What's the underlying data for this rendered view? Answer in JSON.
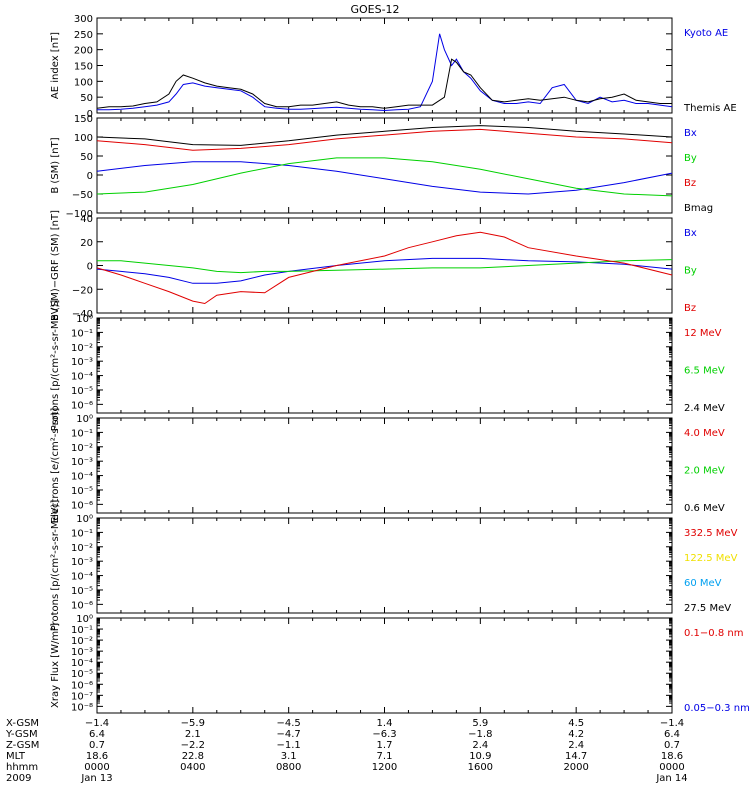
{
  "title": "GOES-12",
  "colors": {
    "black": "#000000",
    "blue": "#0000e6",
    "green": "#00d000",
    "red": "#e00000",
    "yellow": "#f0e000",
    "cyan": "#00a0f0"
  },
  "chart_data": [
    {
      "type": "line",
      "title": "GOES-12",
      "ylabel": "AE index [nT]",
      "ylim": [
        0,
        300
      ],
      "yticks": [
        "0",
        "50",
        "100",
        "150",
        "200",
        "250",
        "300"
      ],
      "legend_placement": "right",
      "series": [
        {
          "name": "Kyoto AE",
          "color": "#0000e6",
          "x": [
            0,
            0.5,
            1,
            1.5,
            2,
            2.5,
            3,
            3.3,
            3.6,
            4,
            4.5,
            5,
            5.5,
            6,
            6.5,
            7,
            7.5,
            8,
            8.5,
            9,
            9.5,
            10,
            10.5,
            11,
            11.5,
            12,
            12.5,
            13,
            13.5,
            14,
            14.3,
            14.5,
            14.8,
            15,
            15.3,
            15.6,
            16,
            16.5,
            17,
            17.5,
            18,
            18.5,
            19,
            19.5,
            20,
            20.5,
            21,
            21.5,
            22,
            22.5,
            23,
            23.5,
            24
          ],
          "y": [
            10,
            10,
            12,
            15,
            20,
            25,
            35,
            60,
            90,
            95,
            85,
            80,
            75,
            70,
            50,
            20,
            15,
            12,
            12,
            14,
            16,
            18,
            15,
            12,
            10,
            8,
            10,
            12,
            20,
            100,
            250,
            200,
            150,
            170,
            130,
            110,
            70,
            40,
            30,
            30,
            35,
            30,
            80,
            90,
            40,
            30,
            50,
            35,
            40,
            30,
            30,
            25,
            20
          ]
        },
        {
          "name": "Themis AE",
          "color": "#000000",
          "x": [
            0,
            0.5,
            1,
            1.5,
            2,
            2.5,
            3,
            3.3,
            3.6,
            4,
            4.5,
            5,
            5.5,
            6,
            6.5,
            7,
            7.5,
            8,
            8.5,
            9,
            9.5,
            10,
            10.5,
            11,
            11.5,
            12,
            12.5,
            13,
            13.5,
            14,
            14.5,
            14.8,
            15,
            15.3,
            15.6,
            16,
            16.5,
            17,
            17.5,
            18,
            18.5,
            19,
            19.5,
            20,
            20.5,
            21,
            21.5,
            22,
            22.5,
            23,
            23.5,
            24
          ],
          "y": [
            15,
            20,
            20,
            22,
            30,
            35,
            60,
            100,
            120,
            110,
            95,
            85,
            80,
            75,
            60,
            30,
            20,
            20,
            25,
            25,
            30,
            35,
            25,
            20,
            20,
            15,
            20,
            25,
            25,
            25,
            50,
            170,
            160,
            130,
            120,
            80,
            40,
            35,
            40,
            45,
            40,
            45,
            50,
            40,
            35,
            45,
            50,
            60,
            40,
            35,
            30,
            30
          ]
        }
      ]
    },
    {
      "type": "line",
      "ylabel": "B (SM) [nT]",
      "ylim": [
        -100,
        150
      ],
      "yticks": [
        "−100",
        "−50",
        "0",
        "50",
        "100",
        "150"
      ],
      "legend_placement": "right",
      "series": [
        {
          "name": "Bx",
          "color": "#0000e6",
          "x": [
            0,
            2,
            4,
            6,
            8,
            10,
            12,
            14,
            16,
            18,
            20,
            22,
            24
          ],
          "y": [
            10,
            25,
            35,
            35,
            25,
            10,
            -10,
            -30,
            -45,
            -50,
            -40,
            -20,
            5
          ]
        },
        {
          "name": "By",
          "color": "#00d000",
          "x": [
            0,
            2,
            4,
            6,
            8,
            10,
            12,
            14,
            16,
            18,
            20,
            22,
            24
          ],
          "y": [
            -50,
            -45,
            -25,
            5,
            30,
            45,
            45,
            35,
            15,
            -10,
            -35,
            -50,
            -55
          ]
        },
        {
          "name": "Bz",
          "color": "#e00000",
          "x": [
            0,
            2,
            4,
            6,
            8,
            10,
            12,
            14,
            16,
            18,
            20,
            22,
            24
          ],
          "y": [
            90,
            80,
            65,
            70,
            80,
            95,
            105,
            115,
            120,
            110,
            100,
            95,
            85
          ]
        },
        {
          "name": "Bmag",
          "color": "#000000",
          "x": [
            0,
            2,
            4,
            6,
            8,
            10,
            12,
            14,
            16,
            18,
            20,
            22,
            24
          ],
          "y": [
            100,
            95,
            80,
            78,
            90,
            105,
            115,
            125,
            130,
            125,
            115,
            108,
            100
          ]
        }
      ]
    },
    {
      "type": "line",
      "ylabel": "B (SM)−GRF (SM) [nT]",
      "ylim": [
        -40,
        40
      ],
      "yticks": [
        "−40",
        "−20",
        "0",
        "20",
        "40"
      ],
      "legend_placement": "right",
      "series": [
        {
          "name": "Bx",
          "color": "#0000e6",
          "x": [
            0,
            1,
            2,
            3,
            4,
            5,
            6,
            7,
            8,
            10,
            12,
            14,
            16,
            18,
            20,
            22,
            24
          ],
          "y": [
            -3,
            -5,
            -7,
            -10,
            -15,
            -15,
            -13,
            -8,
            -5,
            0,
            4,
            6,
            6,
            4,
            3,
            1,
            -3
          ]
        },
        {
          "name": "By",
          "color": "#00d000",
          "x": [
            0,
            1,
            2,
            3,
            4,
            5,
            6,
            7,
            8,
            10,
            12,
            14,
            16,
            18,
            20,
            22,
            24
          ],
          "y": [
            4,
            4,
            2,
            0,
            -2,
            -5,
            -6,
            -5,
            -5,
            -4,
            -3,
            -2,
            -2,
            0,
            2,
            4,
            5
          ]
        },
        {
          "name": "Bz",
          "color": "#e00000",
          "x": [
            0,
            1,
            2,
            3,
            4,
            4.5,
            5,
            6,
            7,
            8,
            10,
            12,
            13,
            14,
            15,
            16,
            17,
            18,
            20,
            22,
            24
          ],
          "y": [
            -2,
            -8,
            -15,
            -22,
            -30,
            -32,
            -25,
            -22,
            -23,
            -10,
            0,
            8,
            15,
            20,
            25,
            28,
            24,
            15,
            8,
            2,
            -8
          ]
        }
      ]
    },
    {
      "type": "line",
      "ylabel": "Protons [p/(cm²-s-sr-MeV)]",
      "log_scale": true,
      "yticks": [
        "10⁻⁶",
        "10⁻⁵",
        "10⁻⁴",
        "10⁻³",
        "10⁻²",
        "10⁻¹",
        "10⁰"
      ],
      "legend_placement": "right",
      "series": [
        {
          "name": "12 MeV",
          "color": "#e00000",
          "x": [],
          "y": []
        },
        {
          "name": "6.5 MeV",
          "color": "#00d000",
          "x": [],
          "y": []
        },
        {
          "name": "2.4 MeV",
          "color": "#000000",
          "x": [],
          "y": []
        }
      ]
    },
    {
      "type": "line",
      "ylabel": "Electrons [e/(cm²-s-sr)]",
      "log_scale": true,
      "yticks": [
        "10⁻⁶",
        "10⁻⁵",
        "10⁻⁴",
        "10⁻³",
        "10⁻²",
        "10⁻¹",
        "10⁰"
      ],
      "legend_placement": "right",
      "series": [
        {
          "name": "4.0 MeV",
          "color": "#e00000",
          "x": [],
          "y": []
        },
        {
          "name": "2.0 MeV",
          "color": "#00d000",
          "x": [],
          "y": []
        },
        {
          "name": "0.6 MeV",
          "color": "#000000",
          "x": [],
          "y": []
        }
      ]
    },
    {
      "type": "line",
      "ylabel": "Protons [p/(cm²-s-sr-MeV)]",
      "log_scale": true,
      "yticks": [
        "10⁻⁶",
        "10⁻⁵",
        "10⁻⁴",
        "10⁻³",
        "10⁻²",
        "10⁻¹",
        "10⁰"
      ],
      "legend_placement": "right",
      "series": [
        {
          "name": "332.5 MeV",
          "color": "#e00000",
          "x": [],
          "y": []
        },
        {
          "name": "122.5 MeV",
          "color": "#f0e000",
          "x": [],
          "y": []
        },
        {
          "name": "60 MeV",
          "color": "#00a0f0",
          "x": [],
          "y": []
        },
        {
          "name": "27.5 MeV",
          "color": "#000000",
          "x": [],
          "y": []
        }
      ]
    },
    {
      "type": "line",
      "ylabel": "Xray Flux [W/m²]",
      "log_scale": true,
      "yticks": [
        "10⁻⁸",
        "10⁻⁷",
        "10⁻⁶",
        "10⁻⁵",
        "10⁻⁴",
        "10⁻³",
        "10⁻²",
        "10⁻¹",
        "10⁰"
      ],
      "legend_placement": "right",
      "series": [
        {
          "name": "0.1−0.8 nm",
          "color": "#e00000",
          "x": [],
          "y": []
        },
        {
          "name": "0.05−0.3 nm",
          "color": "#0000e6",
          "x": [],
          "y": []
        }
      ]
    }
  ],
  "x_axis": {
    "row_labels": [
      "X-GSM",
      "Y-GSM",
      "Z-GSM",
      "MLT",
      "hhmm",
      "2009"
    ],
    "columns": [
      {
        "values": [
          "−1.4",
          "6.4",
          "0.7",
          "18.6",
          "0000",
          "Jan 13"
        ]
      },
      {
        "values": [
          "−5.9",
          "2.1",
          "−2.2",
          "22.8",
          "0400",
          ""
        ]
      },
      {
        "values": [
          "−4.5",
          "−4.7",
          "−1.1",
          "3.1",
          "0800",
          ""
        ]
      },
      {
        "values": [
          "1.4",
          "−6.3",
          "1.7",
          "7.1",
          "1200",
          ""
        ]
      },
      {
        "values": [
          "5.9",
          "−1.8",
          "2.4",
          "10.9",
          "1600",
          ""
        ]
      },
      {
        "values": [
          "4.5",
          "4.2",
          "2.4",
          "14.7",
          "2000",
          ""
        ]
      },
      {
        "values": [
          "−1.4",
          "6.4",
          "0.7",
          "18.6",
          "0000",
          "Jan 14"
        ]
      }
    ]
  }
}
